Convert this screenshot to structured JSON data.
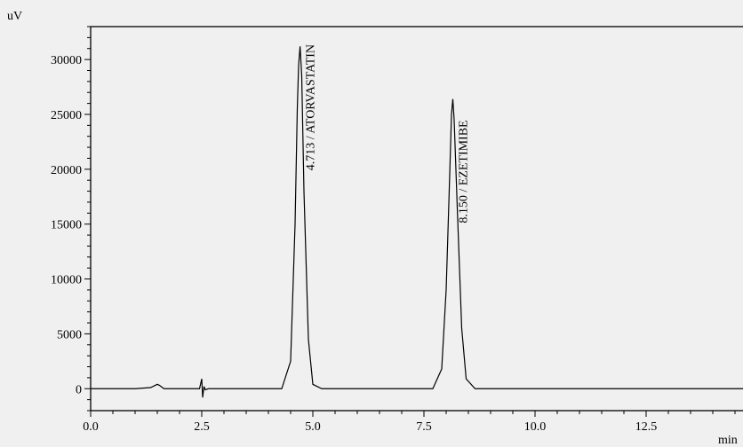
{
  "chart_data": {
    "type": "line",
    "x_unit": "min",
    "y_unit": "uV",
    "xlim": [
      0.0,
      14.8
    ],
    "ylim": [
      -2000,
      33000
    ],
    "x_ticks": [
      "0.0",
      "2.5",
      "5.0",
      "7.5",
      "10.0",
      "12.5"
    ],
    "x_tick_values": [
      0.0,
      2.5,
      5.0,
      7.5,
      10.0,
      12.5
    ],
    "y_ticks": [
      "0",
      "5000",
      "10000",
      "15000",
      "20000",
      "25000",
      "30000"
    ],
    "y_tick_values": [
      0,
      5000,
      10000,
      15000,
      20000,
      25000,
      30000
    ],
    "series": [
      {
        "x": [
          0.0,
          1.0,
          1.35,
          1.45,
          1.5,
          1.55,
          1.65,
          2.0,
          2.45,
          2.5,
          2.52,
          2.55,
          2.58,
          2.65,
          3.0,
          4.3,
          4.5,
          4.6,
          4.65,
          4.68,
          4.713,
          4.75,
          4.8,
          4.9,
          5.0,
          5.2,
          7.7,
          7.9,
          8.0,
          8.08,
          8.12,
          8.15,
          8.18,
          8.25,
          8.35,
          8.45,
          8.65,
          14.8
        ],
        "y": [
          0,
          0,
          100,
          300,
          400,
          300,
          0,
          0,
          0,
          900,
          -800,
          200,
          -100,
          0,
          0,
          0,
          2500,
          15000,
          25500,
          29500,
          31200,
          28500,
          18000,
          4500,
          400,
          0,
          0,
          1800,
          9000,
          19500,
          25000,
          26400,
          24500,
          16500,
          5500,
          900,
          0,
          0
        ]
      }
    ],
    "peak_labels": [
      {
        "x": 4.713,
        "y": 31200,
        "text": "4.713 / ATORVASTATIN"
      },
      {
        "x": 8.15,
        "y": 26400,
        "text": "8.150 / EZETIMIBE"
      }
    ]
  }
}
